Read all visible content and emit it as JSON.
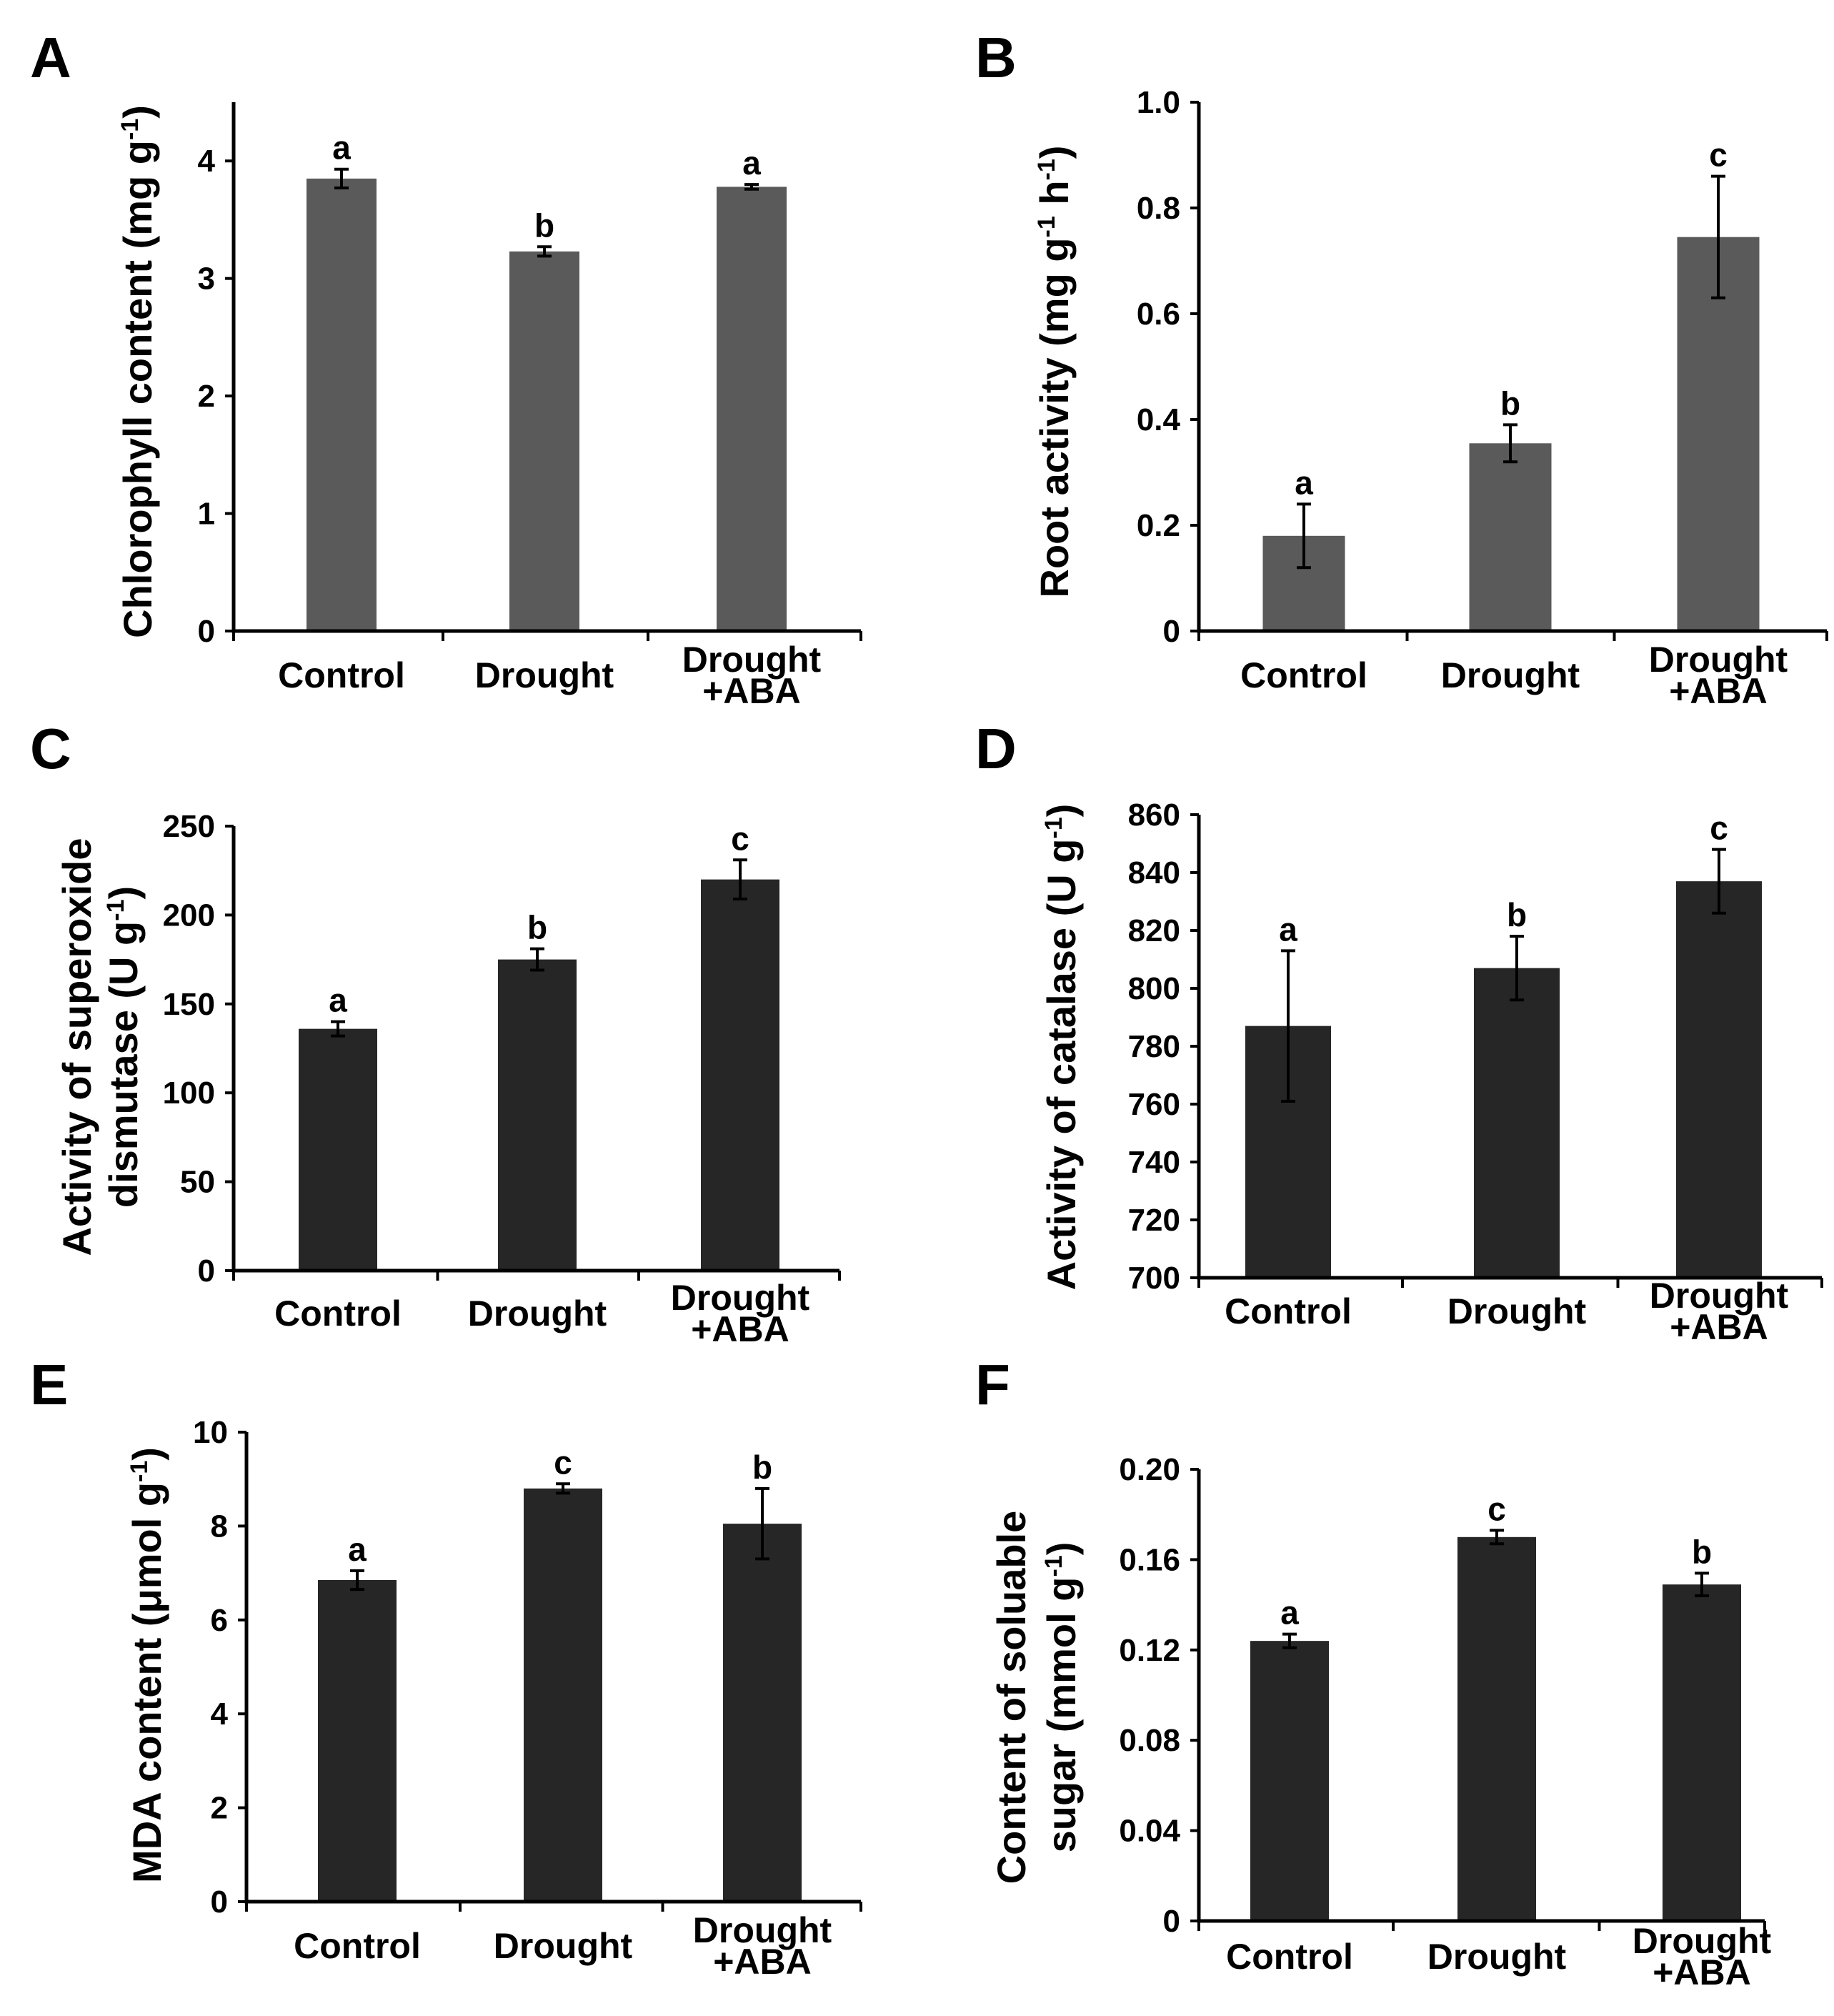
{
  "figure": {
    "panels": [
      "A",
      "B",
      "C",
      "D",
      "E",
      "F"
    ]
  },
  "chart_data": [
    {
      "panel": "A",
      "type": "bar",
      "ylabel": [
        "Chlorophyll content (mg g",
        "-1",
        ")"
      ],
      "categories": [
        [
          "Control"
        ],
        [
          "Drought"
        ],
        [
          "Drought",
          "+ABA"
        ]
      ],
      "values": [
        3.85,
        3.23,
        3.78
      ],
      "errors": [
        0.08,
        0.04,
        0.02
      ],
      "significance": [
        "a",
        "b",
        "a"
      ],
      "ylim": [
        0,
        4.5
      ],
      "yticks": [
        0,
        1,
        2,
        3,
        4
      ],
      "ytick_labels": [
        "0",
        "1",
        "2",
        "3",
        "4"
      ],
      "bar_color": "#5a5a5a"
    },
    {
      "panel": "B",
      "type": "bar",
      "ylabel": [
        "Root activity (mg g",
        "-1",
        " h",
        "-1",
        ")"
      ],
      "categories": [
        [
          "Control"
        ],
        [
          "Drought"
        ],
        [
          "Drought",
          "+ABA"
        ]
      ],
      "values": [
        0.18,
        0.355,
        0.745
      ],
      "errors": [
        0.06,
        0.035,
        0.115
      ],
      "significance": [
        "a",
        "b",
        "c"
      ],
      "ylim": [
        0,
        1.0
      ],
      "yticks": [
        0,
        0.2,
        0.4,
        0.6,
        0.8,
        1.0
      ],
      "ytick_labels": [
        "0",
        "0.2",
        "0.4",
        "0.6",
        "0.8",
        "1.0"
      ],
      "bar_color": "#5a5a5a"
    },
    {
      "panel": "C",
      "type": "bar",
      "ylabel_lines": [
        [
          "Activity of superoxide"
        ],
        [
          "dismutase (U g",
          "-1",
          ")"
        ]
      ],
      "categories": [
        [
          "Control"
        ],
        [
          "Drought"
        ],
        [
          "Drought",
          "+ABA"
        ]
      ],
      "values": [
        136,
        175,
        220
      ],
      "errors": [
        4,
        6,
        11
      ],
      "significance": [
        "a",
        "b",
        "c"
      ],
      "ylim": [
        0,
        250
      ],
      "yticks": [
        0,
        50,
        100,
        150,
        200,
        250
      ],
      "ytick_labels": [
        "0",
        "50",
        "100",
        "150",
        "200",
        "250"
      ],
      "bar_color": "#262626"
    },
    {
      "panel": "D",
      "type": "bar",
      "ylabel": [
        "Activity of catalase (U g",
        "-1",
        ")"
      ],
      "categories": [
        [
          "Control"
        ],
        [
          "Drought"
        ],
        [
          "Drought",
          "+ABA"
        ]
      ],
      "values": [
        787,
        807,
        837
      ],
      "errors": [
        26,
        11,
        11
      ],
      "significance": [
        "a",
        "b",
        "c"
      ],
      "ylim": [
        700,
        860
      ],
      "yticks": [
        700,
        720,
        740,
        760,
        780,
        800,
        820,
        840,
        860
      ],
      "ytick_labels": [
        "700",
        "720",
        "740",
        "760",
        "780",
        "800",
        "820",
        "840",
        "860"
      ],
      "bar_color": "#262626"
    },
    {
      "panel": "E",
      "type": "bar",
      "ylabel": [
        "MDA content (μmol g",
        "-1",
        ")"
      ],
      "categories": [
        [
          "Control"
        ],
        [
          "Drought"
        ],
        [
          "Drought",
          "+ABA"
        ]
      ],
      "values": [
        6.85,
        8.8,
        8.05
      ],
      "errors": [
        0.2,
        0.1,
        0.75
      ],
      "significance": [
        "a",
        "c",
        "b"
      ],
      "ylim": [
        0,
        10
      ],
      "yticks": [
        0,
        2,
        4,
        6,
        8,
        10
      ],
      "ytick_labels": [
        "0",
        "2",
        "4",
        "6",
        "8",
        "10"
      ],
      "bar_color": "#262626"
    },
    {
      "panel": "F",
      "type": "bar",
      "ylabel_lines": [
        [
          "Content of soluable"
        ],
        [
          "sugar (mmol g",
          "-1",
          ")"
        ]
      ],
      "categories": [
        [
          "Control"
        ],
        [
          "Drought"
        ],
        [
          "Drought",
          "+ABA"
        ]
      ],
      "values": [
        0.124,
        0.17,
        0.149
      ],
      "errors": [
        0.003,
        0.003,
        0.005
      ],
      "significance": [
        "a",
        "c",
        "b"
      ],
      "ylim": [
        0,
        0.2
      ],
      "yticks": [
        0,
        0.04,
        0.08,
        0.12,
        0.16,
        0.2
      ],
      "ytick_labels": [
        "0",
        "0.04",
        "0.08",
        "0.12",
        "0.16",
        "0.20"
      ],
      "bar_color": "#262626"
    }
  ]
}
